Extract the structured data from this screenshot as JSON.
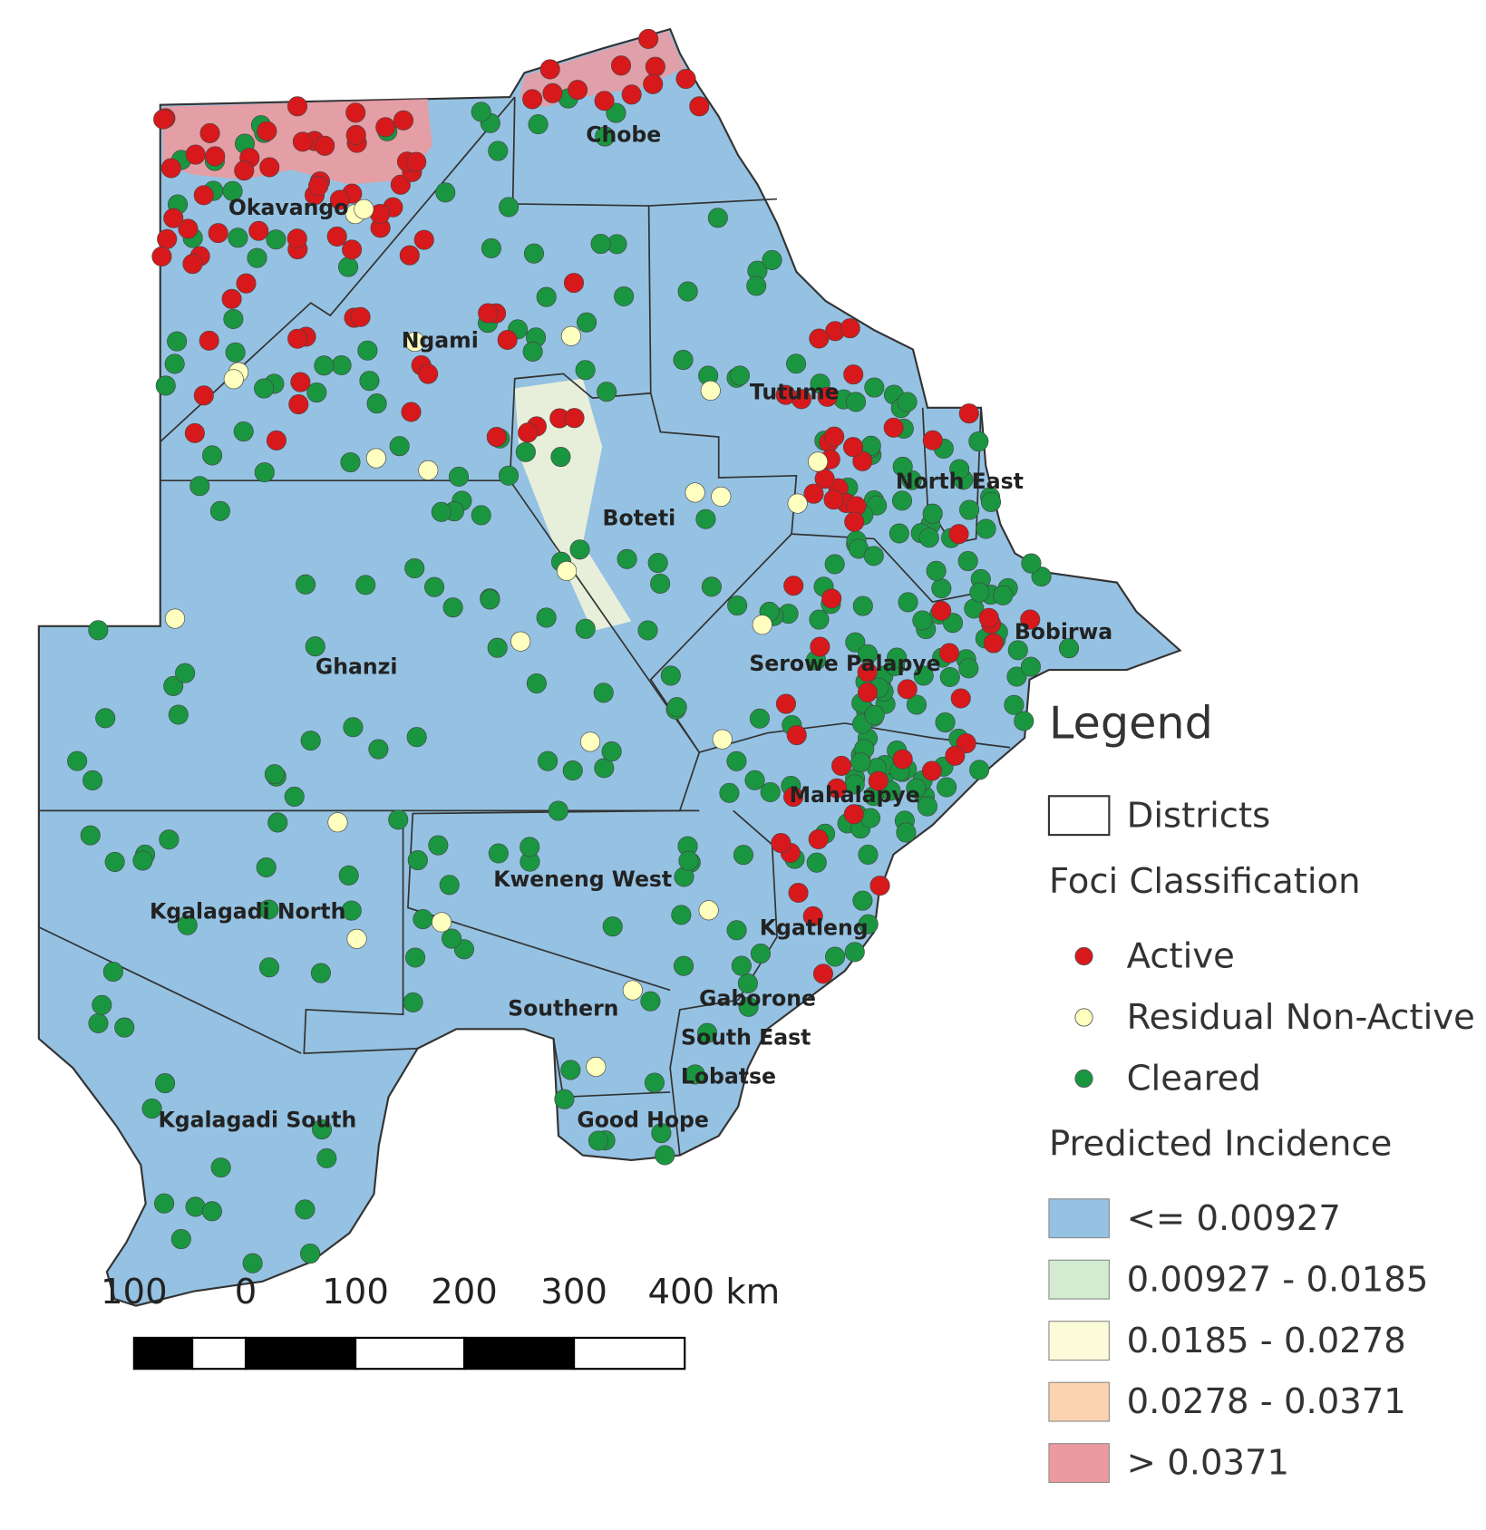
{
  "map": {
    "districts": [
      "Chobe",
      "Okavango",
      "Ngami",
      "Tutume",
      "North East",
      "Boteti",
      "Bobirwa",
      "Ghanzi",
      "Serowe Palapye",
      "Mahalapye",
      "Kweneng West",
      "Kgalagadi North",
      "Kgatleng",
      "Gaborone",
      "Southern",
      "South East",
      "Lobatse",
      "Kgalagadi South",
      "Good Hope"
    ],
    "legend": {
      "title": "Legend",
      "districts_label": "Districts",
      "foci_title": "Foci Classification",
      "foci": [
        {
          "label": "Active",
          "color": "#d7191c"
        },
        {
          "label": "Residual Non-Active",
          "color": "#ffffbf"
        },
        {
          "label": "Cleared",
          "color": "#1a9641"
        }
      ],
      "incidence_title": "Predicted Incidence",
      "incidence": [
        {
          "label": "<= 0.00927",
          "color": "#95c2e2"
        },
        {
          "label": "0.00927 - 0.0185",
          "color": "#d3ecd0"
        },
        {
          "label": "0.0185 - 0.0278",
          "color": "#fbfad9"
        },
        {
          "label": "0.0278 - 0.0371",
          "color": "#fbd3b1"
        },
        {
          "label": "> 0.0371",
          "color": "#ec9a9f"
        }
      ]
    },
    "scale_bar": {
      "labels": [
        "100",
        "0",
        "100",
        "200",
        "300",
        "400 km"
      ]
    }
  }
}
